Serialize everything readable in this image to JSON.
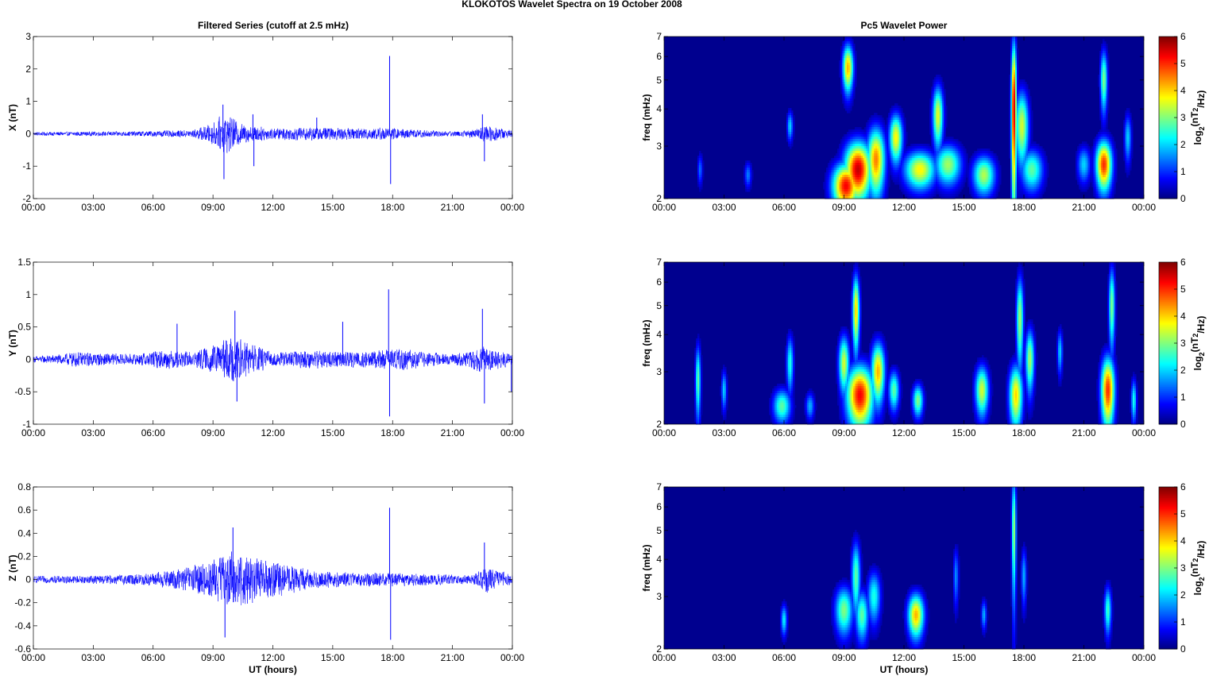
{
  "figure_title": "KLOKOTOS Wavelet Spectra on 19 October   2008",
  "left_title": "Filtered Series (cutoff at 2.5 mHz)",
  "right_title": "Pc5 Wavelet Power",
  "x_label": "UT (hours)",
  "freq_label": "freq (mHz)",
  "colorbar_label": "log2(nT2/Hz)",
  "colors": {
    "trace": "#0000ff",
    "spectrogram_background": "#00008f"
  },
  "chart_data": [
    {
      "type": "line",
      "component": "X",
      "ylabel": "X (nT)",
      "ylim": [
        -2,
        3
      ],
      "yticks": [
        -2,
        -1,
        0,
        1,
        2,
        3
      ],
      "xlim_hours": [
        0,
        24
      ],
      "xticks": [
        "00:00",
        "03:00",
        "06:00",
        "09:00",
        "12:00",
        "15:00",
        "18:00",
        "21:00",
        "00:00"
      ],
      "series": [
        {
          "values": "synthesized",
          "envelope": [
            [
              0,
              0.06
            ],
            [
              5,
              0.08
            ],
            [
              8,
              0.12
            ],
            [
              9,
              0.35
            ],
            [
              9.6,
              0.65
            ],
            [
              10.5,
              0.3
            ],
            [
              12,
              0.18
            ],
            [
              14,
              0.22
            ],
            [
              16,
              0.18
            ],
            [
              17.5,
              0.2
            ],
            [
              19,
              0.14
            ],
            [
              21,
              0.08
            ],
            [
              22.3,
              0.15
            ],
            [
              22.7,
              0.3
            ],
            [
              24,
              0.1
            ]
          ],
          "spikes": [
            [
              9.5,
              0.9
            ],
            [
              9.55,
              -1.4
            ],
            [
              11,
              0.6
            ],
            [
              11.05,
              -1.0
            ],
            [
              17.85,
              2.4
            ],
            [
              17.9,
              -1.55
            ],
            [
              22.5,
              0.6
            ],
            [
              22.6,
              -0.85
            ],
            [
              14.2,
              0.5
            ]
          ]
        }
      ]
    },
    {
      "type": "line",
      "component": "Y",
      "ylabel": "Y (nT)",
      "ylim": [
        -1,
        1.5
      ],
      "yticks": [
        -1,
        -0.5,
        0,
        0.5,
        1,
        1.5
      ],
      "xlim_hours": [
        0,
        24
      ],
      "xticks": [
        "00:00",
        "03:00",
        "06:00",
        "09:00",
        "12:00",
        "15:00",
        "18:00",
        "21:00",
        "00:00"
      ],
      "series": [
        {
          "values": "synthesized",
          "envelope": [
            [
              0,
              0.05
            ],
            [
              1.5,
              0.08
            ],
            [
              2,
              0.12
            ],
            [
              5,
              0.08
            ],
            [
              6.5,
              0.15
            ],
            [
              8,
              0.12
            ],
            [
              9,
              0.22
            ],
            [
              10,
              0.35
            ],
            [
              11,
              0.25
            ],
            [
              12,
              0.1
            ],
            [
              14,
              0.15
            ],
            [
              15.5,
              0.12
            ],
            [
              17.5,
              0.15
            ],
            [
              18.5,
              0.18
            ],
            [
              19.5,
              0.12
            ],
            [
              21,
              0.08
            ],
            [
              22.5,
              0.2
            ],
            [
              24,
              0.1
            ]
          ],
          "spikes": [
            [
              17.8,
              1.08
            ],
            [
              17.85,
              -0.88
            ],
            [
              22.5,
              0.78
            ],
            [
              22.6,
              -0.68
            ],
            [
              10.1,
              0.75
            ],
            [
              10.2,
              -0.65
            ],
            [
              7.2,
              0.55
            ],
            [
              15.5,
              0.58
            ],
            [
              23.95,
              -0.5
            ]
          ]
        }
      ]
    },
    {
      "type": "line",
      "component": "Z",
      "ylabel": "Z (nT)",
      "ylim": [
        -0.6,
        0.8
      ],
      "yticks": [
        -0.6,
        -0.4,
        -0.2,
        0,
        0.2,
        0.4,
        0.6,
        0.8
      ],
      "xlim_hours": [
        0,
        24
      ],
      "xticks": [
        "00:00",
        "03:00",
        "06:00",
        "09:00",
        "12:00",
        "15:00",
        "18:00",
        "21:00",
        "00:00"
      ],
      "series": [
        {
          "values": "synthesized",
          "envelope": [
            [
              0,
              0.03
            ],
            [
              4,
              0.04
            ],
            [
              6,
              0.06
            ],
            [
              7.5,
              0.1
            ],
            [
              8.5,
              0.15
            ],
            [
              10,
              0.25
            ],
            [
              11,
              0.2
            ],
            [
              12.5,
              0.14
            ],
            [
              14,
              0.08
            ],
            [
              16,
              0.06
            ],
            [
              18,
              0.06
            ],
            [
              20,
              0.05
            ],
            [
              22,
              0.04
            ],
            [
              22.7,
              0.12
            ],
            [
              24,
              0.04
            ]
          ],
          "spikes": [
            [
              10,
              0.45
            ],
            [
              17.85,
              0.62
            ],
            [
              17.9,
              -0.52
            ],
            [
              9.6,
              -0.5
            ],
            [
              22.6,
              0.32
            ]
          ]
        }
      ]
    },
    {
      "type": "heatmap",
      "component": "X",
      "ylabel": "freq (mHz)",
      "ylim": [
        2,
        7
      ],
      "yscale": "log",
      "yticks": [
        2,
        3,
        4,
        5,
        6,
        7
      ],
      "xlim_hours": [
        0,
        24
      ],
      "xticks": [
        "00:00",
        "03:00",
        "06:00",
        "09:00",
        "12:00",
        "15:00",
        "18:00",
        "21:00",
        "00:00"
      ],
      "colorbar": {
        "range": [
          0,
          6
        ],
        "ticks": [
          0,
          1,
          2,
          3,
          4,
          5,
          6
        ],
        "colormap": "jet"
      },
      "blobs": [
        {
          "t": 1.8,
          "f": 2.5,
          "amp": 1.4,
          "dt": 0.06,
          "df": 0.15
        },
        {
          "t": 4.2,
          "f": 2.4,
          "amp": 1.5,
          "dt": 0.08,
          "df": 0.12
        },
        {
          "t": 6.3,
          "f": 3.5,
          "amp": 2.0,
          "dt": 0.07,
          "df": 0.2
        },
        {
          "t": 9.1,
          "f": 2.2,
          "amp": 5.3,
          "dt": 0.3,
          "df": 0.2
        },
        {
          "t": 9.7,
          "f": 2.5,
          "amp": 5.6,
          "dt": 0.3,
          "df": 0.28
        },
        {
          "t": 9.2,
          "f": 5.5,
          "amp": 4.2,
          "dt": 0.12,
          "df": 0.5
        },
        {
          "t": 10.6,
          "f": 2.7,
          "amp": 4.5,
          "dt": 0.2,
          "df": 0.35
        },
        {
          "t": 11.6,
          "f": 3.2,
          "amp": 3.8,
          "dt": 0.15,
          "df": 0.3
        },
        {
          "t": 12.8,
          "f": 2.5,
          "amp": 3.8,
          "dt": 0.35,
          "df": 0.18
        },
        {
          "t": 13.7,
          "f": 3.8,
          "amp": 3.6,
          "dt": 0.12,
          "df": 0.45
        },
        {
          "t": 14.2,
          "f": 2.6,
          "amp": 3.2,
          "dt": 0.3,
          "df": 0.2
        },
        {
          "t": 16.0,
          "f": 2.4,
          "amp": 3.3,
          "dt": 0.25,
          "df": 0.18
        },
        {
          "t": 17.5,
          "f": 4.0,
          "amp": 5.6,
          "dt": 0.06,
          "df": 1.2
        },
        {
          "t": 17.9,
          "f": 3.5,
          "amp": 3.5,
          "dt": 0.15,
          "df": 0.5
        },
        {
          "t": 18.4,
          "f": 2.5,
          "amp": 2.8,
          "dt": 0.25,
          "df": 0.2
        },
        {
          "t": 21.0,
          "f": 2.6,
          "amp": 2.0,
          "dt": 0.15,
          "df": 0.18
        },
        {
          "t": 22.0,
          "f": 2.6,
          "amp": 5.0,
          "dt": 0.18,
          "df": 0.25
        },
        {
          "t": 22.0,
          "f": 5.0,
          "amp": 3.0,
          "dt": 0.08,
          "df": 0.6
        },
        {
          "t": 23.2,
          "f": 3.2,
          "amp": 2.0,
          "dt": 0.08,
          "df": 0.3
        }
      ]
    },
    {
      "type": "heatmap",
      "component": "Y",
      "ylabel": "freq (mHz)",
      "ylim": [
        2,
        7
      ],
      "yscale": "log",
      "yticks": [
        2,
        3,
        4,
        5,
        6,
        7
      ],
      "xlim_hours": [
        0,
        24
      ],
      "xticks": [
        "00:00",
        "03:00",
        "06:00",
        "09:00",
        "12:00",
        "15:00",
        "18:00",
        "21:00",
        "00:00"
      ],
      "colorbar": {
        "range": [
          0,
          6
        ],
        "ticks": [
          0,
          1,
          2,
          3,
          4,
          5,
          6
        ],
        "colormap": "jet"
      },
      "blobs": [
        {
          "t": 1.7,
          "f": 2.8,
          "amp": 2.8,
          "dt": 0.06,
          "df": 0.4
        },
        {
          "t": 3.0,
          "f": 2.6,
          "amp": 2.0,
          "dt": 0.06,
          "df": 0.2
        },
        {
          "t": 5.9,
          "f": 2.3,
          "amp": 2.8,
          "dt": 0.2,
          "df": 0.15
        },
        {
          "t": 6.3,
          "f": 3.2,
          "amp": 2.4,
          "dt": 0.08,
          "df": 0.35
        },
        {
          "t": 7.3,
          "f": 2.3,
          "amp": 1.8,
          "dt": 0.1,
          "df": 0.12
        },
        {
          "t": 9.0,
          "f": 3.2,
          "amp": 3.5,
          "dt": 0.12,
          "df": 0.35
        },
        {
          "t": 9.8,
          "f": 2.5,
          "amp": 5.3,
          "dt": 0.3,
          "df": 0.3
        },
        {
          "t": 9.6,
          "f": 4.8,
          "amp": 4.0,
          "dt": 0.08,
          "df": 0.7
        },
        {
          "t": 10.7,
          "f": 3.0,
          "amp": 4.2,
          "dt": 0.15,
          "df": 0.35
        },
        {
          "t": 11.5,
          "f": 2.6,
          "amp": 2.8,
          "dt": 0.12,
          "df": 0.2
        },
        {
          "t": 12.7,
          "f": 2.4,
          "amp": 3.0,
          "dt": 0.12,
          "df": 0.15
        },
        {
          "t": 15.9,
          "f": 2.6,
          "amp": 3.5,
          "dt": 0.15,
          "df": 0.25
        },
        {
          "t": 17.6,
          "f": 2.5,
          "amp": 4.0,
          "dt": 0.15,
          "df": 0.3
        },
        {
          "t": 17.8,
          "f": 4.5,
          "amp": 3.2,
          "dt": 0.08,
          "df": 0.8
        },
        {
          "t": 18.3,
          "f": 3.3,
          "amp": 3.2,
          "dt": 0.1,
          "df": 0.4
        },
        {
          "t": 19.8,
          "f": 3.5,
          "amp": 2.0,
          "dt": 0.06,
          "df": 0.3
        },
        {
          "t": 22.2,
          "f": 2.6,
          "amp": 5.0,
          "dt": 0.15,
          "df": 0.35
        },
        {
          "t": 22.4,
          "f": 5.0,
          "amp": 3.0,
          "dt": 0.07,
          "df": 0.8
        },
        {
          "t": 23.5,
          "f": 2.4,
          "amp": 2.4,
          "dt": 0.06,
          "df": 0.2
        }
      ]
    },
    {
      "type": "heatmap",
      "component": "Z",
      "ylabel": "freq (mHz)",
      "ylim": [
        2,
        7
      ],
      "yscale": "log",
      "yticks": [
        2,
        3,
        4,
        5,
        6,
        7
      ],
      "xlim_hours": [
        0,
        24
      ],
      "xticks": [
        "00:00",
        "03:00",
        "06:00",
        "09:00",
        "12:00",
        "15:00",
        "18:00",
        "21:00",
        "00:00"
      ],
      "colorbar": {
        "range": [
          0,
          6
        ],
        "ticks": [
          0,
          1,
          2,
          3,
          4,
          5,
          6
        ],
        "colormap": "jet"
      },
      "blobs": [
        {
          "t": 6.0,
          "f": 2.5,
          "amp": 2.2,
          "dt": 0.07,
          "df": 0.15
        },
        {
          "t": 9.0,
          "f": 2.7,
          "amp": 3.0,
          "dt": 0.2,
          "df": 0.25
        },
        {
          "t": 9.6,
          "f": 3.5,
          "amp": 2.8,
          "dt": 0.1,
          "df": 0.5
        },
        {
          "t": 9.9,
          "f": 2.6,
          "amp": 2.8,
          "dt": 0.15,
          "df": 0.25
        },
        {
          "t": 10.5,
          "f": 3.0,
          "amp": 2.4,
          "dt": 0.15,
          "df": 0.3
        },
        {
          "t": 12.6,
          "f": 2.6,
          "amp": 4.2,
          "dt": 0.18,
          "df": 0.22
        },
        {
          "t": 14.6,
          "f": 3.5,
          "amp": 1.6,
          "dt": 0.06,
          "df": 0.4
        },
        {
          "t": 16.0,
          "f": 2.6,
          "amp": 1.8,
          "dt": 0.06,
          "df": 0.15
        },
        {
          "t": 17.5,
          "f": 5.0,
          "amp": 3.2,
          "dt": 0.05,
          "df": 1.2
        },
        {
          "t": 18.0,
          "f": 3.5,
          "amp": 1.8,
          "dt": 0.06,
          "df": 0.4
        },
        {
          "t": 22.2,
          "f": 2.7,
          "amp": 2.6,
          "dt": 0.08,
          "df": 0.25
        }
      ]
    }
  ]
}
